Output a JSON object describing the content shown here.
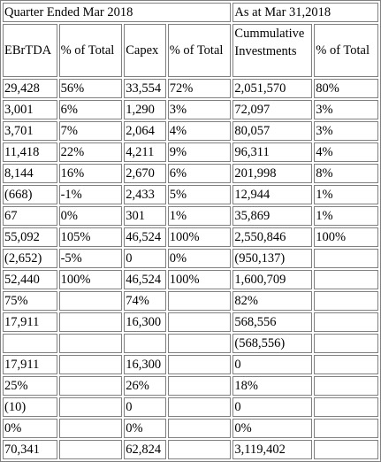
{
  "header": {
    "group_left": "Quarter Ended Mar 2018",
    "group_right": "As at Mar 31,2018",
    "columns": [
      "EBrTDA",
      "% of Total",
      "Capex",
      "% of Total",
      "Cummulative Investments",
      "% of Total"
    ],
    "cum_line1": "Cummulative",
    "cum_line2": "Investments"
  },
  "rows": [
    [
      "29,428",
      "56%",
      "33,554",
      "72%",
      "2,051,570",
      "80%"
    ],
    [
      "3,001",
      "6%",
      "1,290",
      "3%",
      "72,097",
      "3%"
    ],
    [
      "3,701",
      "7%",
      "2,064",
      "4%",
      "80,057",
      "3%"
    ],
    [
      "11,418",
      "22%",
      "4,211",
      "9%",
      "96,311",
      "4%"
    ],
    [
      "8,144",
      "16%",
      "2,670",
      "6%",
      "201,998",
      "8%"
    ],
    [
      "(668)",
      "-1%",
      "2,433",
      "5%",
      "12,944",
      "1%"
    ],
    [
      "67",
      "0%",
      "301",
      "1%",
      "35,869",
      "1%"
    ],
    [
      "55,092",
      "105%",
      "46,524",
      "100%",
      "2,550,846",
      "100%"
    ],
    [
      "(2,652)",
      "-5%",
      "0",
      "0%",
      "(950,137)",
      ""
    ],
    [
      "52,440",
      "100%",
      "46,524",
      "100%",
      "1,600,709",
      ""
    ],
    [
      "75%",
      "",
      "74%",
      "",
      "82%",
      ""
    ],
    [
      "17,911",
      "",
      "16,300",
      "",
      "568,556",
      ""
    ],
    [
      "",
      "",
      "",
      "",
      "(568,556)",
      ""
    ],
    [
      "17,911",
      "",
      "16,300",
      "",
      "0",
      ""
    ],
    [
      "25%",
      "",
      "26%",
      "",
      "18%",
      ""
    ],
    [
      "(10)",
      "",
      "0",
      "",
      "0",
      ""
    ],
    [
      "0%",
      "",
      "0%",
      "",
      "0%",
      ""
    ],
    [
      "70,341",
      "",
      "62,824",
      "",
      "3,119,402",
      ""
    ]
  ]
}
